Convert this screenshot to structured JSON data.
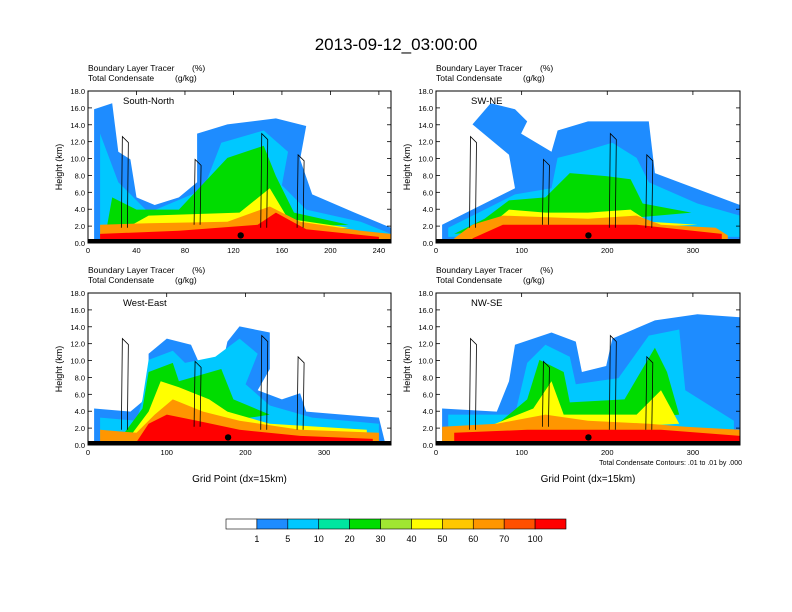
{
  "title": "2013-09-12_03:00:00",
  "chart_data": [
    {
      "type": "heatmap",
      "panel_label": "South-North",
      "left_string_1": "Boundary Layer Tracer",
      "left_string_2": "Total Condensate",
      "unit_1": "(%)",
      "unit_2": "(g/kg)",
      "ylabel": "Height (km)",
      "xlabel": "",
      "xlim": [
        0,
        250
      ],
      "ylim": [
        0,
        18
      ],
      "xticks": [
        "0",
        "40",
        "80",
        "120",
        "160",
        "200",
        "240"
      ],
      "xtick_values": [
        0,
        40,
        80,
        120,
        160,
        200,
        240
      ],
      "yticks": [
        "0.0",
        "2.0",
        "4.0",
        "6.0",
        "8.0",
        "10.0",
        "12.0",
        "14.0",
        "16.0",
        "18.0"
      ],
      "marker": {
        "x": 126,
        "y": 0.9
      },
      "footnote": ""
    },
    {
      "type": "heatmap",
      "panel_label": "SW-NE",
      "left_string_1": "Boundary Layer Tracer",
      "left_string_2": "Total Condensate",
      "unit_1": "(%)",
      "unit_2": "(g/kg)",
      "ylabel": "Height (km)",
      "xlabel": "",
      "xlim": [
        0,
        355
      ],
      "ylim": [
        0,
        18
      ],
      "xticks": [
        "0",
        "100",
        "200",
        "300"
      ],
      "xtick_values": [
        0,
        100,
        200,
        300
      ],
      "yticks": [
        "0.0",
        "2.0",
        "4.0",
        "6.0",
        "8.0",
        "10.0",
        "12.0",
        "14.0",
        "16.0",
        "18.0"
      ],
      "marker": {
        "x": 178,
        "y": 0.9
      },
      "footnote": ""
    },
    {
      "type": "heatmap",
      "panel_label": "West-East",
      "left_string_1": "Boundary Layer Tracer",
      "left_string_2": "Total Condensate",
      "unit_1": "(%)",
      "unit_2": "(g/kg)",
      "ylabel": "Height (km)",
      "xlabel": "Grid Point (dx=15km)",
      "xlim": [
        0,
        385
      ],
      "ylim": [
        0,
        18
      ],
      "xticks": [
        "0",
        "100",
        "200",
        "300"
      ],
      "xtick_values": [
        0,
        100,
        200,
        300
      ],
      "yticks": [
        "0.0",
        "2.0",
        "4.0",
        "6.0",
        "8.0",
        "10.0",
        "12.0",
        "14.0",
        "16.0",
        "18.0"
      ],
      "marker": {
        "x": 178,
        "y": 0.9
      },
      "footnote": ""
    },
    {
      "type": "heatmap",
      "panel_label": "NW-SE",
      "left_string_1": "Boundary Layer Tracer",
      "left_string_2": "Total Condensate",
      "unit_1": "(%)",
      "unit_2": "(g/kg)",
      "ylabel": "Height (km)",
      "xlabel": "Grid Point (dx=15km)",
      "xlim": [
        0,
        355
      ],
      "ylim": [
        0,
        18
      ],
      "xticks": [
        "0",
        "100",
        "200",
        "300"
      ],
      "xtick_values": [
        0,
        100,
        200,
        300
      ],
      "yticks": [
        "0.0",
        "2.0",
        "4.0",
        "6.0",
        "8.0",
        "10.0",
        "12.0",
        "14.0",
        "16.0",
        "18.0"
      ],
      "marker": {
        "x": 178,
        "y": 0.9
      },
      "footnote": "Total Condensate Contours: .01 to .01 by .000"
    }
  ],
  "colorbar": {
    "levels": [
      "1",
      "5",
      "10",
      "20",
      "30",
      "40",
      "50",
      "60",
      "70",
      "100"
    ],
    "colors": [
      "#ffffff",
      "#1e8cff",
      "#00c8ff",
      "#00e6a0",
      "#00dc00",
      "#a0e632",
      "#ffff00",
      "#ffc800",
      "#ff9600",
      "#ff5000",
      "#ff0000"
    ]
  }
}
